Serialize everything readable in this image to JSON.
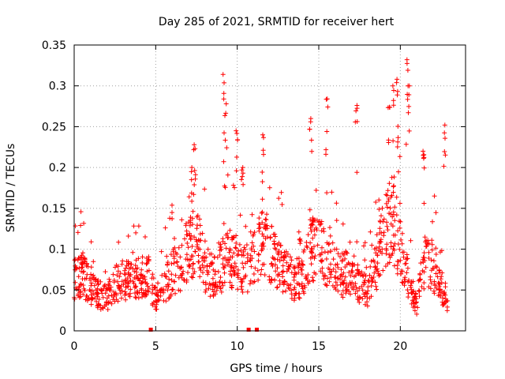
{
  "chart_data": {
    "type": "scatter",
    "title": "Day 285 of 2021, SRMTID for receiver hert",
    "xlabel": "GPS time / hours",
    "ylabel": "SRMTID / TECUs",
    "xlim": [
      0,
      24
    ],
    "ylim": [
      0,
      0.35
    ],
    "x_ticks": [
      0,
      5,
      10,
      15,
      20
    ],
    "x_tick_labels": [
      "0",
      "5",
      "10",
      "15",
      "20"
    ],
    "y_ticks": [
      0,
      0.05,
      0.1,
      0.15,
      0.2,
      0.25,
      0.3,
      0.35
    ],
    "y_tick_labels": [
      "0",
      "0.05",
      "0.1",
      "0.15",
      "0.2",
      "0.25",
      "0.3",
      "0.35"
    ],
    "grid": true,
    "marker": "plus",
    "color": "#ff0000",
    "data_gaps_x": [
      4.7,
      10.7,
      11.2
    ],
    "anchors": [
      [
        0.0,
        0.062
      ],
      [
        0.5,
        0.07
      ],
      [
        1.0,
        0.052
      ],
      [
        1.5,
        0.045
      ],
      [
        2.0,
        0.04
      ],
      [
        2.5,
        0.058
      ],
      [
        3.0,
        0.062
      ],
      [
        3.5,
        0.06
      ],
      [
        4.0,
        0.065
      ],
      [
        4.5,
        0.07
      ],
      [
        5.0,
        0.04
      ],
      [
        5.5,
        0.055
      ],
      [
        6.0,
        0.07
      ],
      [
        6.5,
        0.08
      ],
      [
        7.0,
        0.1
      ],
      [
        7.5,
        0.11
      ],
      [
        8.0,
        0.08
      ],
      [
        8.5,
        0.065
      ],
      [
        9.0,
        0.075
      ],
      [
        9.5,
        0.09
      ],
      [
        10.0,
        0.08
      ],
      [
        10.5,
        0.075
      ],
      [
        11.0,
        0.085
      ],
      [
        11.5,
        0.11
      ],
      [
        12.0,
        0.1
      ],
      [
        12.5,
        0.08
      ],
      [
        13.0,
        0.075
      ],
      [
        13.5,
        0.06
      ],
      [
        14.0,
        0.07
      ],
      [
        14.5,
        0.1
      ],
      [
        15.0,
        0.1
      ],
      [
        15.5,
        0.09
      ],
      [
        16.0,
        0.075
      ],
      [
        16.5,
        0.068
      ],
      [
        17.0,
        0.075
      ],
      [
        17.5,
        0.055
      ],
      [
        18.0,
        0.048
      ],
      [
        18.5,
        0.08
      ],
      [
        19.0,
        0.115
      ],
      [
        19.5,
        0.135
      ],
      [
        20.0,
        0.105
      ],
      [
        20.5,
        0.065
      ],
      [
        21.0,
        0.03
      ],
      [
        21.5,
        0.09
      ],
      [
        22.0,
        0.08
      ],
      [
        22.5,
        0.06
      ],
      [
        23.0,
        0.02
      ]
    ],
    "peaks": [
      [
        7.2,
        0.2
      ],
      [
        7.4,
        0.228
      ],
      [
        9.2,
        0.314
      ],
      [
        9.3,
        0.278
      ],
      [
        10.0,
        0.245
      ],
      [
        10.3,
        0.2
      ],
      [
        11.6,
        0.24
      ],
      [
        14.5,
        0.26
      ],
      [
        15.5,
        0.284
      ],
      [
        17.3,
        0.276
      ],
      [
        19.3,
        0.274
      ],
      [
        19.6,
        0.3
      ],
      [
        19.8,
        0.308
      ],
      [
        20.4,
        0.332
      ],
      [
        20.5,
        0.3
      ],
      [
        21.4,
        0.22
      ],
      [
        22.7,
        0.252
      ]
    ]
  }
}
